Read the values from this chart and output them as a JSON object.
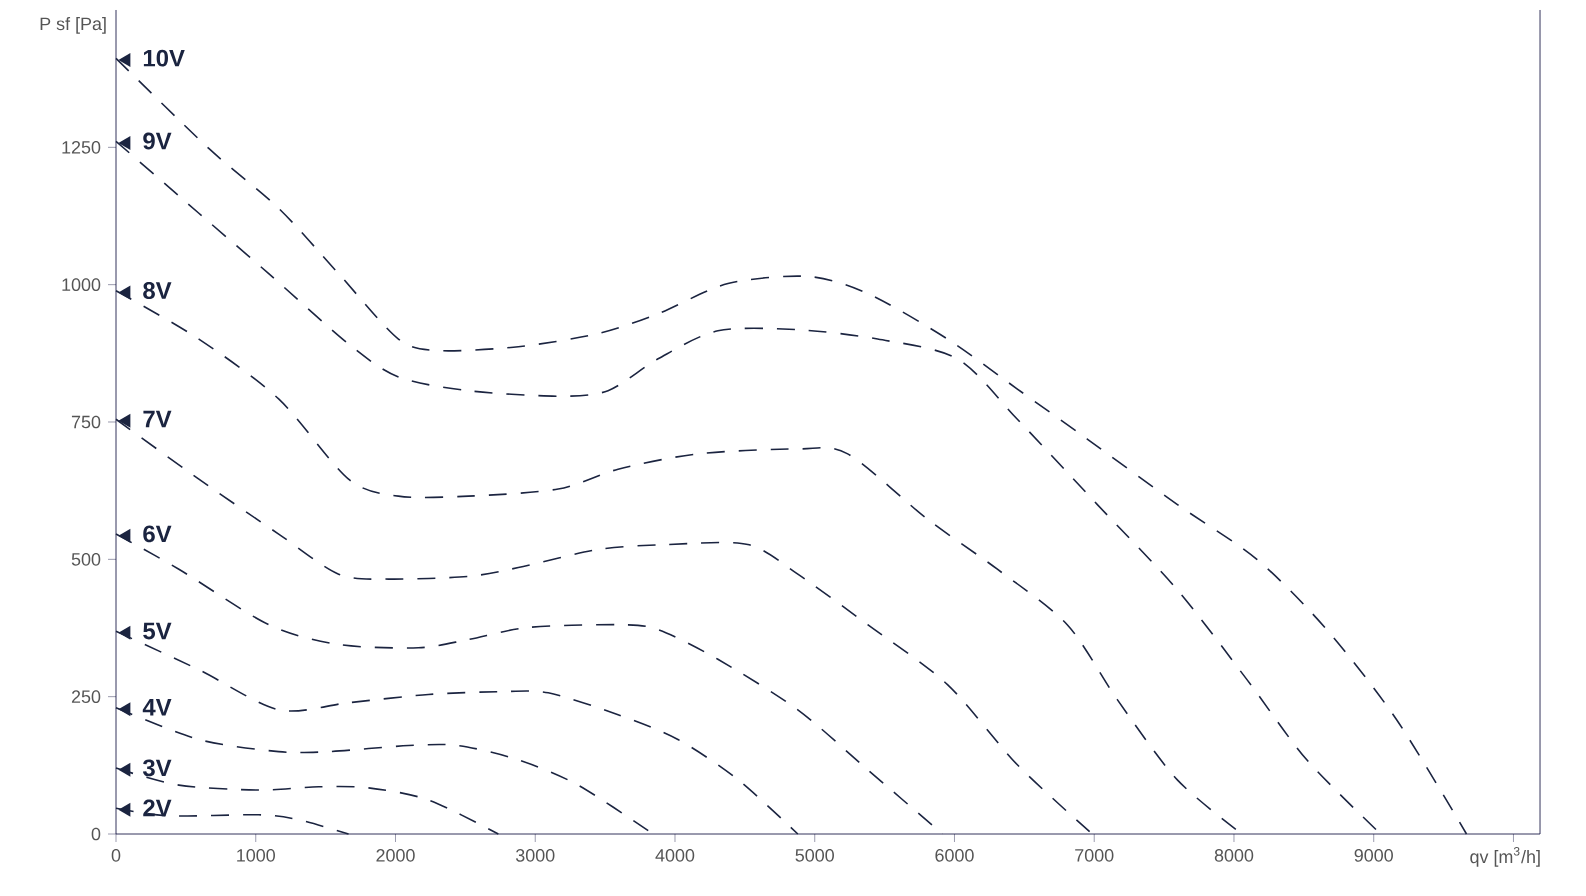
{
  "chart_data": {
    "type": "line",
    "xlabel": "qv [m$^{3}$/h]",
    "ylabel": "P sf [Pa]",
    "xlim": [
      0,
      10190
    ],
    "ylim": [
      0,
      1500
    ],
    "xticks": [
      0,
      1000,
      2000,
      3000,
      4000,
      5000,
      6000,
      7000,
      8000,
      9000,
      {
        "value": 10000,
        "label": null
      }
    ],
    "yticks": [
      0,
      250,
      500,
      750,
      1000,
      1250
    ],
    "grid": false,
    "legend": "left",
    "line_style": "dashed",
    "series": [
      {
        "name": "10V",
        "color": "#1b2440",
        "x": [
          0,
          664,
          1164,
          1593,
          2021,
          2307,
          2879,
          3450,
          3879,
          4379,
          4950,
          5379,
          5950,
          6450,
          6950,
          7593,
          8164,
          8664,
          9164,
          9664
        ],
        "values": [
          1412,
          1248,
          1139,
          1020,
          901,
          880,
          887,
          911,
          947,
          1002,
          1015,
          984,
          901,
          810,
          719,
          600,
          500,
          372,
          208,
          0
        ]
      },
      {
        "name": "9V",
        "color": "#1b2440",
        "x": [
          0,
          593,
          1093,
          1664,
          2021,
          2521,
          3164,
          3521,
          3879,
          4307,
          4879,
          5450,
          6021,
          6450,
          7021,
          7593,
          8093,
          8521,
          9050
        ],
        "values": [
          1261,
          1130,
          1020,
          892,
          832,
          807,
          797,
          807,
          865,
          916,
          918,
          901,
          865,
          755,
          600,
          445,
          281,
          135,
          0
        ]
      },
      {
        "name": "8V",
        "color": "#1b2440",
        "x": [
          0,
          593,
          1164,
          1664,
          2021,
          2521,
          3164,
          3593,
          4164,
          4879,
          5236,
          5807,
          6307,
          6807,
          7164,
          7593,
          8057
        ],
        "values": [
          989,
          901,
          792,
          646,
          615,
          615,
          628,
          664,
          692,
          701,
          692,
          573,
          482,
          381,
          245,
          99,
          0
        ]
      },
      {
        "name": "7V",
        "color": "#1b2440",
        "x": [
          0,
          593,
          1164,
          1593,
          1950,
          2521,
          2879,
          3450,
          3950,
          4521,
          4879,
          5379,
          5950,
          6450,
          6986
        ],
        "values": [
          755,
          646,
          546,
          473,
          464,
          469,
          485,
          518,
          527,
          527,
          473,
          381,
          272,
          126,
          0
        ]
      },
      {
        "name": "6V",
        "color": "#1b2440",
        "x": [
          0,
          450,
          1093,
          1593,
          2164,
          2521,
          2950,
          3593,
          3879,
          4307,
          4879,
          5379,
          5914
        ],
        "values": [
          546,
          482,
          381,
          345,
          339,
          354,
          376,
          381,
          372,
          318,
          226,
          117,
          0
        ]
      },
      {
        "name": "5V",
        "color": "#1b2440",
        "x": [
          0,
          593,
          1164,
          1664,
          2236,
          2736,
          3093,
          3593,
          4021,
          4450,
          4879
        ],
        "values": [
          369,
          299,
          226,
          239,
          254,
          259,
          257,
          217,
          172,
          99,
          0
        ]
      },
      {
        "name": "4V",
        "color": "#1b2440",
        "x": [
          0,
          593,
          1164,
          1521,
          2093,
          2450,
          2879,
          3307,
          3843
        ],
        "values": [
          230,
          172,
          150,
          150,
          161,
          161,
          135,
          89,
          0
        ]
      },
      {
        "name": "3V",
        "color": "#1b2440",
        "x": [
          0,
          450,
          1021,
          1450,
          1807,
          2236,
          2736
        ],
        "values": [
          120,
          89,
          80,
          86,
          84,
          62,
          0
        ]
      },
      {
        "name": "2V",
        "color": "#1b2440",
        "x": [
          0,
          379,
          1021,
          1307,
          1664
        ],
        "values": [
          47,
          33,
          35,
          26,
          0
        ]
      }
    ]
  }
}
